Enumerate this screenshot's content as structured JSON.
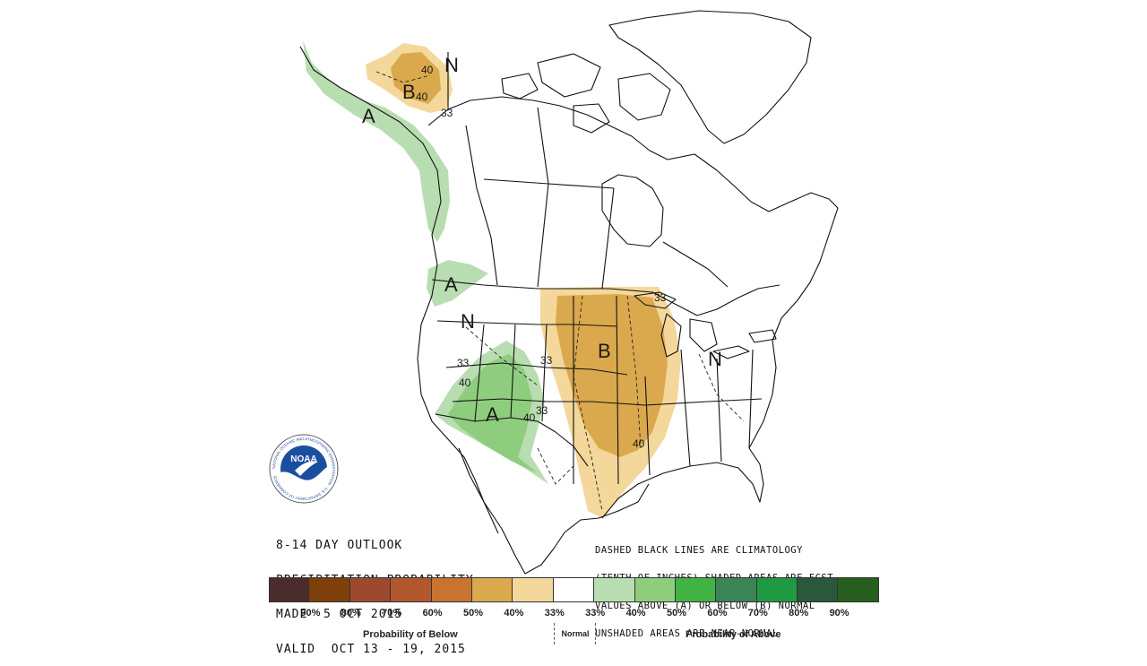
{
  "outlook": {
    "line1": "8-14 DAY OUTLOOK",
    "line2": "PRECIPITATION PROBABILITY",
    "line3": "MADE  5 OCT 2015",
    "line4": "VALID  OCT 13 - 19, 2015"
  },
  "note": {
    "line1": "DASHED BLACK LINES ARE CLIMATOLOGY",
    "line2": "(TENTH OF INCHES) SHADED AREAS ARE FCST",
    "line3": "VALUES ABOVE (A) OR BELOW (B) NORMAL",
    "line4": "UNSHADED AREAS ARE NEAR-NORMAL"
  },
  "logo": {
    "text": "NOAA",
    "ring_text": "NATIONAL OCEANIC AND ATMOSPHERIC ADMINISTRATION · U.S. DEPARTMENT OF COMMERCE"
  },
  "map_labels": {
    "alaska_B": "B",
    "alaska_A": "A",
    "alaska_N": "N",
    "alaska_40a": "40",
    "alaska_40b": "40",
    "alaska_33": "33",
    "pnw_A": "A",
    "west_N": "N",
    "east_N": "N",
    "sw_A": "A",
    "sw_33a": "33",
    "sw_40a": "40",
    "sw_40b": "40",
    "sw_33b": "33",
    "central_B": "B",
    "central_33a": "33",
    "central_40": "40",
    "central_33b": "33"
  },
  "legend": {
    "colors": [
      "#4b2c2c",
      "#7f3f0b",
      "#9c4a2e",
      "#b3582e",
      "#c8732f",
      "#daa94d",
      "#f4d79a",
      "#ffffff",
      "#b8ddb1",
      "#8fcd7e",
      "#41b244",
      "#3a8455",
      "#1f9a43",
      "#2a583b",
      "#275e1f"
    ],
    "labels": [
      "90%",
      "80%",
      "70%",
      "60%",
      "50%",
      "40%",
      "33%",
      "33%",
      "40%",
      "50%",
      "60%",
      "70%",
      "80%",
      "90%"
    ],
    "below_caption": "Probability of Below",
    "normal_caption": "Normal",
    "above_caption": "Probability of Above"
  }
}
